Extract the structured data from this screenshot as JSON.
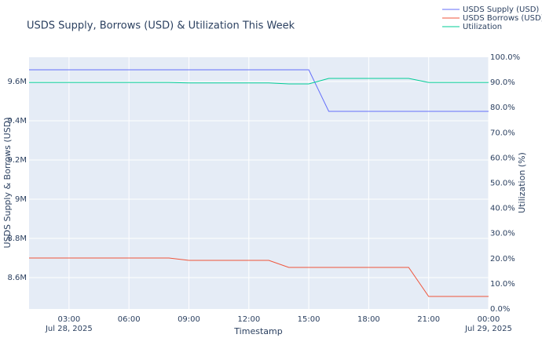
{
  "chart_data": {
    "type": "line",
    "title": "USDS Supply, Borrows (USD) & Utilization This Week",
    "x_label": "Timestamp",
    "y_label": "USDS Supply & Borrows (USD)",
    "y2_label": "Utilization (%)",
    "x": [
      "2025-07-28 01:00",
      "2025-07-28 02:00",
      "2025-07-28 03:00",
      "2025-07-28 04:00",
      "2025-07-28 05:00",
      "2025-07-28 06:00",
      "2025-07-28 07:00",
      "2025-07-28 08:00",
      "2025-07-28 09:00",
      "2025-07-28 10:00",
      "2025-07-28 11:00",
      "2025-07-28 12:00",
      "2025-07-28 13:00",
      "2025-07-28 14:00",
      "2025-07-28 15:00",
      "2025-07-28 16:00",
      "2025-07-28 17:00",
      "2025-07-28 18:00",
      "2025-07-28 19:00",
      "2025-07-28 20:00",
      "2025-07-28 21:00",
      "2025-07-28 22:00",
      "2025-07-28 23:00",
      "2025-07-29 00:00"
    ],
    "series": [
      {
        "name": "USDS Supply (USD)",
        "color": "#636efa",
        "values": [
          9660000,
          9660000,
          9660000,
          9660000,
          9660000,
          9660000,
          9660000,
          9660000,
          9660000,
          9660000,
          9660000,
          9660000,
          9660000,
          9660000,
          9660000,
          9448000,
          9448000,
          9448000,
          9448000,
          9448000,
          9448000,
          9448000,
          9448000,
          9448000
        ]
      },
      {
        "name": "USDS Borrows (USD)",
        "color": "#ef553b",
        "values": [
          8700000,
          8700000,
          8700000,
          8700000,
          8700000,
          8700000,
          8700000,
          8700000,
          8688000,
          8688000,
          8688000,
          8688000,
          8688000,
          8652000,
          8652000,
          8652000,
          8652000,
          8652000,
          8652000,
          8652000,
          8504000,
          8504000,
          8504000,
          8504000
        ]
      },
      {
        "name": "Utilization",
        "color": "#00cc96",
        "axis": "y2",
        "values": [
          90.0,
          90.0,
          90.0,
          90.0,
          90.0,
          90.0,
          90.0,
          90.0,
          89.8,
          89.8,
          89.8,
          89.8,
          89.8,
          89.4,
          89.4,
          91.6,
          91.6,
          91.6,
          91.6,
          91.6,
          90.0,
          90.0,
          90.0,
          90.0
        ]
      }
    ],
    "xlim": [
      "2025-07-28 01:00",
      "2025-07-29 00:00"
    ],
    "xticks": [
      {
        "value": "2025-07-28 03:00",
        "label": "03:00",
        "date_label": "Jul 28, 2025"
      },
      {
        "value": "2025-07-28 06:00",
        "label": "06:00"
      },
      {
        "value": "2025-07-28 09:00",
        "label": "09:00"
      },
      {
        "value": "2025-07-28 12:00",
        "label": "12:00"
      },
      {
        "value": "2025-07-28 15:00",
        "label": "15:00"
      },
      {
        "value": "2025-07-28 18:00",
        "label": "18:00"
      },
      {
        "value": "2025-07-28 21:00",
        "label": "21:00"
      },
      {
        "value": "2025-07-29 00:00",
        "label": "00:00",
        "date_label": "Jul 29, 2025"
      }
    ],
    "ylim": [
      8440000,
      9724000
    ],
    "yticks": [
      {
        "value": 8600000,
        "label": "8.6M"
      },
      {
        "value": 8800000,
        "label": "8.8M"
      },
      {
        "value": 9000000,
        "label": "9M"
      },
      {
        "value": 9200000,
        "label": "9.2M"
      },
      {
        "value": 9400000,
        "label": "9.4M"
      },
      {
        "value": 9600000,
        "label": "9.6M"
      }
    ],
    "y2lim": [
      0,
      100
    ],
    "y2ticks": [
      {
        "value": 0,
        "label": "0.0%"
      },
      {
        "value": 10,
        "label": "10.0%"
      },
      {
        "value": 20,
        "label": "20.0%"
      },
      {
        "value": 30,
        "label": "30.0%"
      },
      {
        "value": 40,
        "label": "40.0%"
      },
      {
        "value": 50,
        "label": "50.0%"
      },
      {
        "value": 60,
        "label": "60.0%"
      },
      {
        "value": 70,
        "label": "70.0%"
      },
      {
        "value": 80,
        "label": "80.0%"
      },
      {
        "value": 90,
        "label": "90.0%"
      },
      {
        "value": 100,
        "label": "100.0%"
      }
    ],
    "grid": true,
    "legend": "top-right"
  }
}
